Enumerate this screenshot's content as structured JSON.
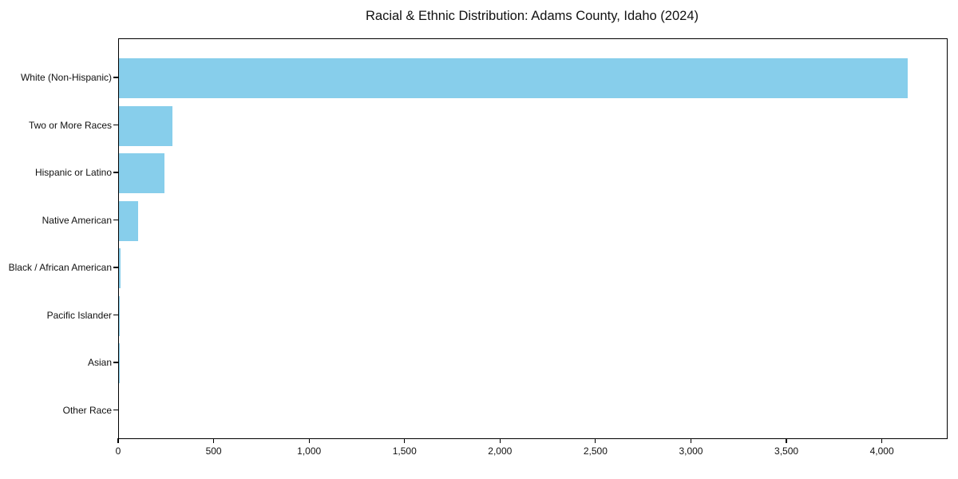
{
  "chart_data": {
    "type": "bar",
    "orientation": "horizontal",
    "title": "Racial & Ethnic Distribution: Adams County, Idaho (2024)",
    "categories": [
      "White (Non-Hispanic)",
      "Two or More Races",
      "Hispanic or Latino",
      "Native American",
      "Black / African American",
      "Pacific Islander",
      "Asian",
      "Other Race"
    ],
    "values": [
      4130,
      280,
      240,
      100,
      10,
      4,
      3,
      0
    ],
    "xlabel": "",
    "ylabel": "",
    "xlim": [
      0,
      4336
    ],
    "x_ticks": [
      0,
      500,
      1000,
      1500,
      2000,
      2500,
      3000,
      3500,
      4000
    ],
    "x_tick_labels": [
      "0",
      "500",
      "1,000",
      "1,500",
      "2,000",
      "2,500",
      "3,000",
      "3,500",
      "4,000"
    ],
    "grid": false,
    "legend": null
  },
  "colors": {
    "bar": "#87CEEB",
    "axis": "#000000",
    "text": "#111111",
    "background": "#FFFFFF"
  }
}
